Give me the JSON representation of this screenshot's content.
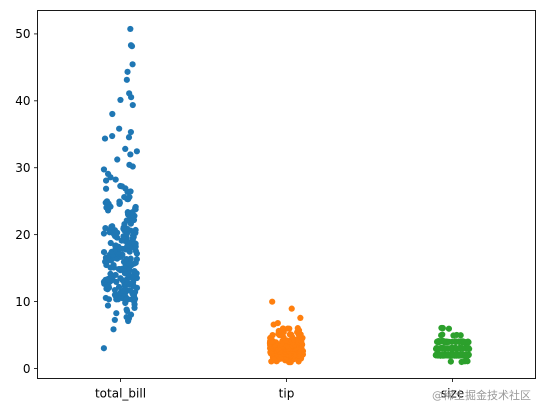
{
  "chart_data": {
    "type": "scatter",
    "subtype": "strip",
    "categories": [
      "total_bill",
      "tip",
      "size"
    ],
    "colors": [
      "#1f77b4",
      "#ff7f0e",
      "#2ca02c"
    ],
    "ylim": [
      -1.5,
      53.5
    ],
    "yticks": [
      0,
      10,
      20,
      30,
      40,
      50
    ],
    "grid": false,
    "series": [
      {
        "values": [
          3.1,
          5.8,
          7.1,
          7.3,
          7.5,
          7.7,
          8.0,
          8.3,
          8.5,
          8.8,
          9.1,
          9.4,
          9.6,
          9.8,
          10.1,
          10.3,
          10.3,
          10.4,
          10.5,
          10.6,
          10.7,
          10.8,
          11.0,
          11.0,
          11.2,
          11.4,
          11.6,
          11.7,
          11.9,
          12.0,
          12.2,
          12.4,
          12.5,
          12.6,
          12.7,
          12.9,
          13.0,
          13.0,
          13.1,
          13.2,
          13.3,
          13.4,
          13.4,
          13.5,
          13.6,
          13.8,
          13.9,
          14.0,
          14.1,
          14.3,
          14.5,
          14.7,
          14.8,
          14.9,
          15.0,
          15.1,
          15.4,
          15.5,
          15.7,
          15.8,
          15.9,
          16.0,
          16.2,
          16.3,
          16.4,
          16.5,
          16.6,
          16.9,
          17.0,
          17.1,
          17.3,
          17.5,
          17.6,
          17.8,
          17.9,
          18.0,
          18.2,
          18.3,
          18.4,
          18.7,
          18.8,
          19.1,
          19.4,
          19.5,
          19.7,
          19.8,
          20.1,
          20.2,
          20.3,
          20.5,
          20.6,
          20.7,
          20.9,
          21.0,
          21.2,
          21.6,
          22.1,
          22.5,
          22.8,
          23.1,
          23.3,
          23.7,
          24.0,
          24.1,
          24.6,
          24.7,
          25.0,
          25.3,
          25.7,
          26.4,
          26.9,
          27.2,
          28.0,
          28.2,
          28.6,
          29.0,
          29.8,
          30.1,
          30.4,
          31.3,
          31.9,
          32.4,
          32.8,
          34.3,
          34.6,
          34.8,
          35.3,
          35.8,
          38.1,
          39.4,
          40.2,
          40.6,
          41.2,
          43.1,
          44.3,
          45.4,
          48.2,
          48.3,
          50.8
        ],
        "weights": [
          1,
          1,
          1,
          1,
          1,
          1,
          1,
          1,
          1,
          1,
          1,
          1,
          1,
          1,
          1,
          2,
          2,
          2,
          2,
          2,
          2,
          2,
          2,
          2,
          2,
          2,
          2,
          2,
          2,
          2,
          2,
          2,
          2,
          2,
          2,
          2,
          2,
          2,
          2,
          2,
          2,
          2,
          2,
          2,
          2,
          2,
          2,
          2,
          2,
          2,
          2,
          2,
          2,
          2,
          2,
          2,
          2,
          2,
          2,
          2,
          2,
          2,
          2,
          2,
          2,
          2,
          2,
          2,
          2,
          2,
          2,
          2,
          2,
          2,
          2,
          2,
          2,
          2,
          2,
          2,
          2,
          2,
          2,
          2,
          2,
          2,
          2,
          2,
          2,
          2,
          2,
          2,
          2,
          2,
          2,
          2,
          2,
          2,
          2,
          2,
          2,
          2,
          2,
          2,
          2,
          2,
          2,
          2,
          2,
          2,
          2,
          2,
          1,
          1,
          1,
          1,
          1,
          1,
          1,
          1,
          1,
          1,
          1,
          1,
          1,
          1,
          1,
          1,
          1,
          1,
          1,
          1,
          1,
          1,
          1,
          1,
          1,
          1,
          1
        ]
      },
      {
        "values": [
          1.0,
          1.0,
          1.1,
          1.2,
          1.3,
          1.4,
          1.5,
          1.5,
          1.5,
          1.6,
          1.7,
          1.7,
          1.8,
          1.9,
          2.0,
          2.0,
          2.0,
          2.0,
          2.0,
          2.1,
          2.2,
          2.2,
          2.3,
          2.3,
          2.4,
          2.5,
          2.5,
          2.5,
          2.5,
          2.6,
          2.6,
          2.7,
          2.7,
          2.8,
          2.9,
          3.0,
          3.0,
          3.0,
          3.0,
          3.0,
          3.1,
          3.2,
          3.2,
          3.3,
          3.4,
          3.5,
          3.5,
          3.5,
          3.6,
          3.7,
          3.8,
          3.9,
          4.0,
          4.0,
          4.0,
          4.1,
          4.2,
          4.3,
          4.5,
          4.7,
          5.0,
          5.0,
          5.0,
          5.2,
          5.5,
          5.6,
          5.9,
          6.0,
          6.5,
          6.7,
          7.6,
          9.0,
          10.0
        ],
        "weights": [
          2,
          2,
          2,
          2,
          2,
          2,
          3,
          3,
          3,
          3,
          3,
          3,
          3,
          3,
          4,
          4,
          4,
          4,
          4,
          4,
          4,
          4,
          4,
          4,
          4,
          4,
          4,
          4,
          4,
          4,
          4,
          4,
          4,
          4,
          4,
          5,
          5,
          5,
          5,
          5,
          4,
          4,
          4,
          4,
          4,
          5,
          5,
          5,
          4,
          4,
          4,
          4,
          4,
          4,
          4,
          3,
          3,
          3,
          3,
          3,
          3,
          3,
          3,
          2,
          2,
          2,
          2,
          2,
          1,
          1,
          1,
          1,
          1
        ]
      },
      {
        "values": [
          1,
          2,
          3,
          4,
          5,
          6
        ],
        "weights": [
          4,
          156,
          38,
          37,
          5,
          4
        ]
      }
    ]
  },
  "watermark": "@稀土掘金技术社区"
}
